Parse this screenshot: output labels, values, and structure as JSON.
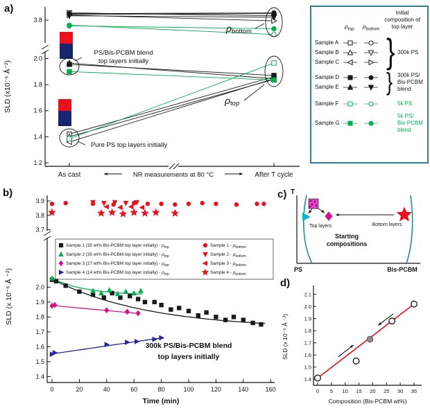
{
  "panel_labels": {
    "a": "a)",
    "b": "b)",
    "c": "c)",
    "d": "d)"
  },
  "colors": {
    "black": "#1a1a1a",
    "green": "#00b050",
    "red": "#e8111d",
    "magenta": "#d4148c",
    "navy": "#26269c",
    "teal_curve": "#0e8c84",
    "legend_border": "#2e7f93",
    "gray_point": "#8c8c8c",
    "pink": "#ee3cc8",
    "cyan": "#00b8d8",
    "bar_red": "#e8111d",
    "bar_blue": "#18246e"
  },
  "legend_a": {
    "rho": "ρ",
    "header_top": "top",
    "header_bottom": "bottom",
    "header_right": [
      "Initial",
      "composition",
      "of top layer"
    ],
    "brace": "}",
    "rows": [
      {
        "name": "Sample A",
        "m1": {
          "marker": "square",
          "filled": false,
          "color": "black"
        },
        "m2": {
          "marker": "circle",
          "filled": false,
          "color": "black"
        }
      },
      {
        "name": "Sample B",
        "m1": {
          "marker": "triangle-up",
          "filled": false,
          "color": "black"
        },
        "m2": {
          "marker": "triangle-down",
          "filled": false,
          "color": "black"
        }
      },
      {
        "name": "Sample C",
        "m1": {
          "marker": "triangle-left",
          "filled": false,
          "color": "black"
        },
        "m2": {
          "marker": "triangle-right",
          "filled": false,
          "color": "black"
        }
      },
      {
        "name": "Sample D",
        "m1": {
          "marker": "square",
          "filled": true,
          "color": "black"
        },
        "m2": {
          "marker": "circle",
          "filled": true,
          "color": "black"
        }
      },
      {
        "name": "Sample E",
        "m1": {
          "marker": "triangle-up",
          "filled": true,
          "color": "black"
        },
        "m2": {
          "marker": "triangle-down",
          "filled": true,
          "color": "black"
        }
      },
      {
        "name": "Sample F",
        "m1": {
          "marker": "square",
          "filled": false,
          "color": "green"
        },
        "m2": {
          "marker": "circle",
          "filled": false,
          "color": "green"
        }
      },
      {
        "name": "Sample G",
        "m1": {
          "marker": "square",
          "filled": true,
          "color": "green"
        },
        "m2": {
          "marker": "circle",
          "filled": true,
          "color": "green"
        }
      }
    ],
    "groups": [
      {
        "first": 0,
        "last": 2,
        "label": [
          "300k PS"
        ],
        "color": "black"
      },
      {
        "first": 3,
        "last": 4,
        "label": [
          "300k PS/",
          "Bis-PCBM",
          "blend"
        ],
        "color": "black"
      },
      {
        "first": 5,
        "last": 5,
        "label": [
          "5k PS"
        ],
        "color": "green"
      },
      {
        "first": 6,
        "last": 6,
        "label": [
          "5k PS/",
          "Bis-PCBM",
          "blend"
        ],
        "color": "green"
      }
    ]
  },
  "legend_b": {
    "rho": "ρ",
    "left": [
      {
        "marker": "square",
        "filled": true,
        "color": "black",
        "text": "Sample 1 (35 wt% Bis-PCBM top layer initially) - ",
        "rho": "top"
      },
      {
        "marker": "triangle-up",
        "filled": true,
        "color": "green",
        "text": "Sample 2 (35 wt% Bis-PCBM top layer initially) - ",
        "rho": "top"
      },
      {
        "marker": "diamond",
        "filled": true,
        "color": "magenta",
        "text": "Sample 3 (27 wt% Bis-PCBM top layer initially) - ",
        "rho": "top"
      },
      {
        "marker": "triangle-right",
        "filled": true,
        "color": "navy",
        "text": "Sample 4 (14 wt% Bis-PCBM top layer initially) - ",
        "rho": "top"
      }
    ],
    "right": [
      {
        "marker": "circle",
        "filled": true,
        "color": "red",
        "text": "Sample 1 - ",
        "rho": "bottom"
      },
      {
        "marker": "triangle-down",
        "filled": true,
        "color": "red",
        "text": "Sample 2 - ",
        "rho": "bottom"
      },
      {
        "marker": "triangle-left",
        "filled": true,
        "color": "red",
        "text": "Sample 3 - ",
        "rho": "bottom"
      },
      {
        "marker": "star",
        "filled": true,
        "color": "red",
        "text": "Sample 4 - ",
        "rho": "bottom"
      }
    ]
  },
  "chart_data": [
    {
      "panel": "a",
      "type": "line",
      "ylabel": "SLD (x10⁻⁶ Å⁻²)",
      "x_points": [
        "As cast",
        "After T cycle"
      ],
      "x_between_label": "NR measurements at 80 °C",
      "y_ticks_upper": [
        3.8
      ],
      "y_ticks_lower": [
        2.0,
        1.8,
        1.6,
        1.4,
        1.2
      ],
      "rho_top_sub": "top",
      "rho_bottom_sub": "bottom",
      "annotation_blend": [
        "PS/Bis-PCBM blend",
        "top layers initially"
      ],
      "annotation_pure": "Pure PS top layers initially",
      "series": [
        {
          "sample": "A",
          "layer": "top",
          "marker": "square",
          "filled": false,
          "color": "black",
          "values": [
            1.42,
            1.86
          ]
        },
        {
          "sample": "B",
          "layer": "top",
          "marker": "triangle-up",
          "filled": false,
          "color": "black",
          "values": [
            1.4,
            1.84
          ]
        },
        {
          "sample": "C",
          "layer": "top",
          "marker": "triangle-left",
          "filled": false,
          "color": "black",
          "values": [
            1.36,
            1.845
          ]
        },
        {
          "sample": "D",
          "layer": "top",
          "marker": "square",
          "filled": true,
          "color": "black",
          "values": [
            1.955,
            1.87
          ]
        },
        {
          "sample": "E",
          "layer": "top",
          "marker": "triangle-up",
          "filled": true,
          "color": "black",
          "values": [
            1.965,
            1.845
          ]
        },
        {
          "sample": "F",
          "layer": "top",
          "marker": "square",
          "filled": false,
          "color": "green",
          "values": [
            1.385,
            1.965
          ]
        },
        {
          "sample": "G",
          "layer": "top",
          "marker": "square",
          "filled": true,
          "color": "green",
          "values": [
            1.9,
            1.835
          ]
        },
        {
          "sample": "A",
          "layer": "bottom",
          "marker": "circle",
          "filled": false,
          "color": "black",
          "values": [
            3.84,
            3.845
          ]
        },
        {
          "sample": "B",
          "layer": "bottom",
          "marker": "triangle-down",
          "filled": false,
          "color": "black",
          "values": [
            3.85,
            3.83
          ]
        },
        {
          "sample": "C",
          "layer": "bottom",
          "marker": "triangle-right",
          "filled": false,
          "color": "black",
          "values": [
            3.835,
            3.795
          ]
        },
        {
          "sample": "D",
          "layer": "bottom",
          "marker": "circle",
          "filled": true,
          "color": "black",
          "values": [
            3.845,
            3.85
          ]
        },
        {
          "sample": "E",
          "layer": "bottom",
          "marker": "triangle-down",
          "filled": true,
          "color": "black",
          "values": [
            3.83,
            3.82
          ]
        },
        {
          "sample": "F",
          "layer": "bottom",
          "marker": "circle",
          "filled": false,
          "color": "green",
          "values": [
            3.765,
            3.7
          ]
        },
        {
          "sample": "G",
          "layer": "bottom",
          "marker": "circle",
          "filled": true,
          "color": "green",
          "values": [
            3.76,
            3.74
          ]
        }
      ]
    },
    {
      "panel": "b",
      "type": "scatter",
      "xlabel": "Time (min)",
      "ylabel": "SLD (x 10⁻⁶ Å ⁻²)",
      "x_ticks": [
        0,
        20,
        40,
        60,
        80,
        100,
        120,
        140,
        160
      ],
      "y_ticks_upper": [
        3.9,
        3.8,
        3.7
      ],
      "y_ticks_lower": [
        2.0,
        1.9,
        1.8,
        1.7,
        1.6,
        1.5,
        1.4
      ],
      "annotation": [
        "300k PS/Bis-PCBM blend",
        "top layers initially"
      ],
      "series": [
        {
          "name": "sample1-rho-top",
          "marker": "square",
          "filled": true,
          "color": "black",
          "x": [
            0,
            3,
            10,
            20,
            30,
            38,
            44,
            50,
            57,
            63,
            68,
            75,
            80,
            87,
            93,
            100,
            107,
            113,
            120,
            127,
            133,
            140,
            147,
            153
          ],
          "y": [
            2.05,
            2.04,
            2.01,
            1.97,
            1.95,
            1.93,
            1.96,
            1.93,
            1.94,
            1.92,
            1.9,
            1.9,
            1.88,
            1.85,
            1.86,
            1.84,
            1.81,
            1.83,
            1.8,
            1.78,
            1.8,
            1.78,
            1.76,
            1.75
          ],
          "fit": {
            "type": "exp",
            "a": 1.72,
            "b": 0.335,
            "tau": 70,
            "t0": 0,
            "t1": 156,
            "color": "black"
          }
        },
        {
          "name": "sample2-rho-top",
          "marker": "triangle-up",
          "filled": true,
          "color": "green",
          "x": [
            0,
            30,
            36,
            42,
            48,
            54,
            60,
            65
          ],
          "y": [
            2.06,
            1.975,
            1.96,
            1.98,
            1.955,
            1.97,
            1.96,
            1.975
          ],
          "fit": {
            "type": "exp",
            "a": 1.945,
            "b": 0.115,
            "tau": 25,
            "t0": 0,
            "t1": 66,
            "color": "green"
          }
        },
        {
          "name": "sample3-rho-top",
          "marker": "diamond",
          "filled": true,
          "color": "magenta",
          "x": [
            0,
            2,
            40,
            55,
            63
          ],
          "y": [
            1.875,
            1.88,
            1.845,
            1.835,
            1.825
          ],
          "fit": {
            "type": "lin",
            "y0": 1.877,
            "y1": 1.822,
            "t0": 0,
            "t1": 65,
            "color": "magenta"
          }
        },
        {
          "name": "sample4-rho-top",
          "marker": "triangle-right",
          "filled": true,
          "color": "navy",
          "x": [
            0,
            2,
            40,
            55,
            62,
            75,
            80
          ],
          "y": [
            1.55,
            1.56,
            1.615,
            1.63,
            1.635,
            1.65,
            1.66
          ],
          "fit": {
            "type": "lin",
            "y0": 1.552,
            "y1": 1.662,
            "t0": 0,
            "t1": 82,
            "color": "navy"
          }
        },
        {
          "name": "sample1-rho-bottom",
          "marker": "circle",
          "filled": true,
          "color": "red",
          "x": [
            0,
            10,
            30,
            45,
            60,
            70,
            80,
            90,
            100,
            110,
            120,
            135,
            150,
            155
          ],
          "y": [
            3.88,
            3.885,
            3.88,
            3.875,
            3.885,
            3.88,
            3.88,
            3.875,
            3.88,
            3.885,
            3.88,
            3.875,
            3.88,
            3.88
          ]
        },
        {
          "name": "sample2-rho-bottom",
          "marker": "triangle-down",
          "filled": true,
          "color": "red",
          "x": [
            30,
            38,
            46,
            54,
            62
          ],
          "y": [
            3.89,
            3.885,
            3.89,
            3.885,
            3.89
          ]
        },
        {
          "name": "sample3-rho-bottom",
          "marker": "triangle-left",
          "filled": true,
          "color": "red",
          "x": [
            40,
            50,
            58,
            66
          ],
          "y": [
            3.86,
            3.855,
            3.86,
            3.855
          ]
        },
        {
          "name": "sample4-rho-bottom",
          "marker": "star",
          "filled": true,
          "color": "red",
          "x": [
            0,
            36,
            44,
            52,
            60,
            68,
            76,
            90
          ],
          "y": [
            3.82,
            3.815,
            3.82,
            3.81,
            3.82,
            3.815,
            3.82,
            3.815
          ]
        }
      ]
    },
    {
      "panel": "c",
      "type": "diagram",
      "axis_labels": {
        "y": "T",
        "x_left": "PS",
        "x_right": "Bis-PCBM"
      },
      "labels": {
        "top_layers": "Top layers",
        "bottom_layers": "Bottom layers",
        "starting": [
          "Starting",
          "compositions"
        ]
      },
      "markers": [
        {
          "shape": "blend-square",
          "color": "pink"
        },
        {
          "shape": "triangle-right",
          "color": "cyan"
        },
        {
          "shape": "diamond",
          "color": "magenta"
        },
        {
          "shape": "star",
          "color": "red"
        }
      ]
    },
    {
      "panel": "d",
      "type": "scatter",
      "xlabel": "Composition (Bis-PCBM wt%)",
      "ylabel": "SLD (x 10⁻⁶ Å ⁻²)",
      "x_ticks": [
        0,
        5,
        10,
        15,
        20,
        25,
        30,
        35
      ],
      "y_ticks": [
        1.4,
        1.5,
        1.6,
        1.7,
        1.8,
        1.9,
        2.0,
        2.1
      ],
      "line": {
        "color": "red",
        "x": [
          0,
          35
        ],
        "y": [
          1.41,
          2.02
        ]
      },
      "open_points": [
        [
          0,
          1.41
        ],
        [
          14,
          1.55
        ],
        [
          27,
          1.88
        ],
        [
          35,
          2.02
        ]
      ],
      "gray_point": [
        19,
        1.73
      ]
    }
  ]
}
